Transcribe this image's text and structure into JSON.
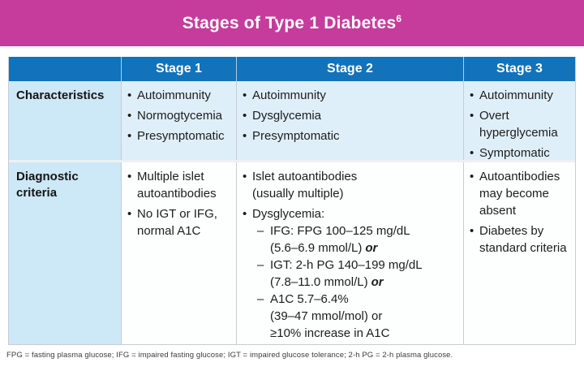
{
  "colors": {
    "banner": "#C63C9C",
    "header_blue": "#1272BA",
    "header_divider": "#AECFE8",
    "label_cell": "#CDE8F6",
    "char_cell": "#DFEFF9",
    "diag_cell": "#FDFEFE",
    "body_divider": "#C9CDD1",
    "row_divider": "#EEF1F3",
    "table_border": "#C8CDD2",
    "text": "#1C1C1C",
    "footnote_text": "#3C3C3C"
  },
  "glyphs": {
    "bullet": "•",
    "dash": "–"
  },
  "banner": {
    "title": "Stages of Type 1 Diabetes",
    "title_superscript": "6"
  },
  "table": {
    "columns": [
      "",
      "Stage 1",
      "Stage 2",
      "Stage 3"
    ],
    "rows": [
      {
        "label": "Characteristics",
        "cells": {
          "stage1": {
            "bullets": [
              {
                "lines": [
                  "Autoimmunity"
                ]
              },
              {
                "lines": [
                  "Normogtycemia"
                ]
              },
              {
                "lines": [
                  "Presymptomatic"
                ]
              }
            ]
          },
          "stage2": {
            "bullets": [
              {
                "lines": [
                  "Autoimmunity"
                ]
              },
              {
                "lines": [
                  "Dysglycemia"
                ]
              },
              {
                "lines": [
                  "Presymptomatic"
                ]
              }
            ]
          },
          "stage3": {
            "bullets": [
              {
                "lines": [
                  "Autoimmunity"
                ]
              },
              {
                "lines": [
                  "Overt",
                  "hyperglycemia"
                ]
              },
              {
                "lines": [
                  "Symptomatic"
                ]
              }
            ]
          }
        }
      },
      {
        "label": "Diagnostic criteria",
        "cells": {
          "stage1": {
            "bullets": [
              {
                "lines": [
                  "Multiple islet",
                  "autoantibodies"
                ]
              },
              {
                "lines": [
                  "No IGT or IFG,",
                  "normal A1C"
                ]
              }
            ]
          },
          "stage2": {
            "bullets": [
              {
                "lines": [
                  "Islet autoantibodies",
                  "(usually multiple)"
                ]
              },
              {
                "lines": [
                  "Dysglycemia:"
                ],
                "sub": [
                  {
                    "lines": [
                      "IFG: FPG 100–125 mg/dL",
                      {
                        "text": "(5.6–6.9 mmol/L)",
                        "or": "or"
                      }
                    ]
                  },
                  {
                    "lines": [
                      "IGT: 2-h PG 140–199 mg/dL",
                      {
                        "text": "(7.8–11.0 mmol/L)",
                        "or": "or"
                      }
                    ]
                  },
                  {
                    "lines": [
                      "A1C 5.7–6.4%",
                      "(39–47 mmol/mol) or",
                      "≥10% increase in A1C"
                    ]
                  }
                ]
              }
            ]
          },
          "stage3": {
            "bullets": [
              {
                "lines": [
                  "Autoantibodies",
                  "may become",
                  "absent"
                ]
              },
              {
                "lines": [
                  "Diabetes by",
                  "standard criteria"
                ]
              }
            ]
          }
        }
      }
    ]
  },
  "footnote": "FPG = fasting plasma glucose; IFG = impaired fasting glucose; IGT = impaired glucose tolerance; 2-h PG = 2-h plasma glucose."
}
